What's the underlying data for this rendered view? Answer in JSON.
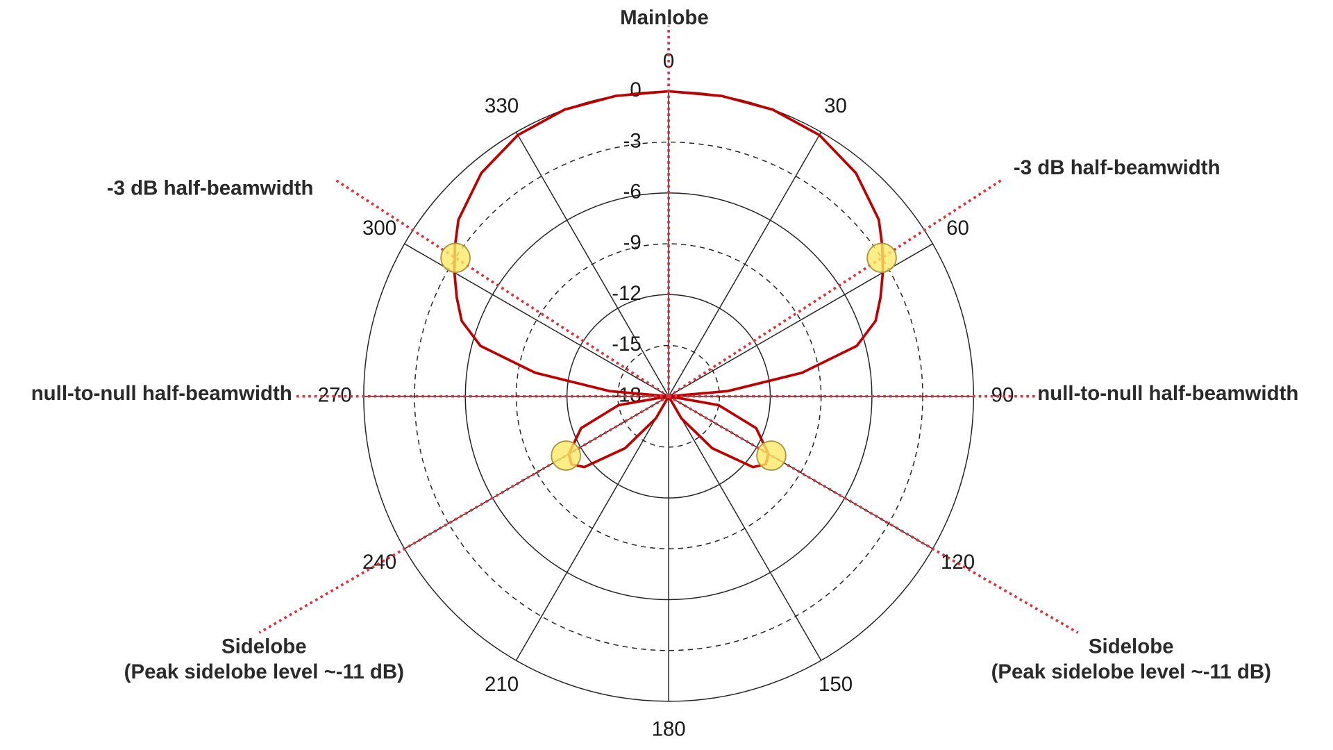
{
  "chart_data": {
    "type": "polar",
    "theta": [
      0,
      10,
      20,
      30,
      40,
      50,
      55,
      60,
      65,
      70,
      75,
      80,
      85,
      90,
      100,
      110,
      120,
      125,
      130,
      140,
      150,
      160,
      170,
      180,
      190,
      200,
      210,
      220,
      230,
      235,
      240,
      250,
      260,
      270,
      275,
      280,
      285,
      290,
      295,
      300,
      305,
      310,
      320,
      330,
      340,
      350
    ],
    "series": [
      {
        "color": "#c00000",
        "values": [
          0,
          0,
          0,
          -0.2,
          -0.8,
          -1.8,
          -2.6,
          -3.4,
          -4.2,
          -5,
          -6.5,
          -10,
          -14.5,
          -18,
          -15,
          -12.5,
          -11.2,
          -11,
          -11.5,
          -14,
          -16.5,
          -18,
          -18,
          -18,
          -18,
          -18,
          -16.5,
          -14,
          -11.5,
          -11,
          -11.2,
          -12.5,
          -15,
          -18,
          -14.5,
          -10,
          -6.5,
          -5,
          -4.2,
          -3.4,
          -2.6,
          -1.8,
          -0.8,
          -0.2,
          0,
          0
        ]
      }
    ],
    "rlim": [
      -18,
      0
    ],
    "rticks": [
      -18,
      -15,
      -12,
      -9,
      -6,
      -3,
      0
    ],
    "thetaticks": [
      0,
      30,
      60,
      90,
      120,
      150,
      180,
      210,
      240,
      270,
      300,
      330
    ],
    "grid": true,
    "annotations": [
      {
        "text": "Mainlobe",
        "theta": 0
      },
      {
        "text": "-3 dB half-beamwidth",
        "theta": 57,
        "r": -3
      },
      {
        "text": "-3 dB half-beamwidth",
        "theta": 303,
        "r": -3
      },
      {
        "text": "null-to-null half-beamwidth",
        "theta": 90
      },
      {
        "text": "null-to-null half-beamwidth",
        "theta": 270
      },
      {
        "lines": [
          "Sidelobe",
          "(Peak sidelobe level ~-11 dB)"
        ],
        "theta": 120,
        "r": -11
      },
      {
        "lines": [
          "Sidelobe",
          "(Peak sidelobe level ~-11 dB)"
        ],
        "theta": 240,
        "r": -11
      }
    ],
    "annotation_color": "#e0303a",
    "highlight_color": "#ffe866"
  }
}
